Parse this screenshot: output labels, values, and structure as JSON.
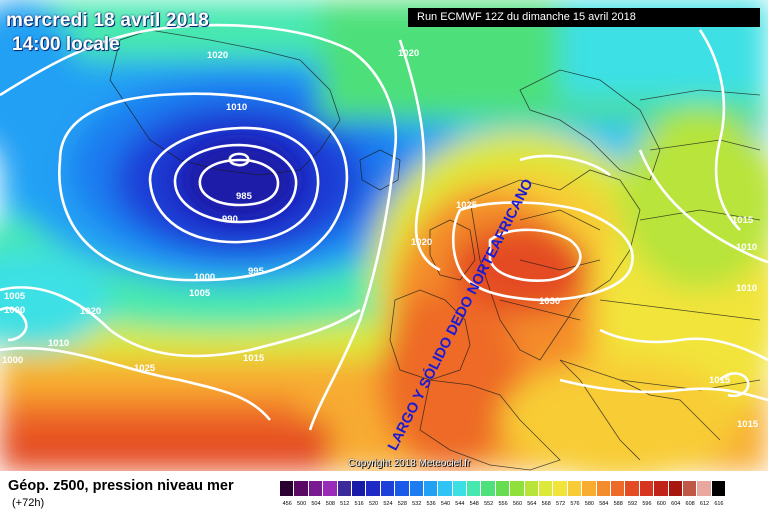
{
  "header": {
    "date": "mercredi 18 avril 2018",
    "time": "14:00 locale",
    "run": "Run ECMWF 12Z du dimanche 15 avril 2018"
  },
  "copyright": "Copyright 2018 Meteociel.fr",
  "annotation": "LARGO Y SÓLIDO DEDO NORTEAFRICANO",
  "footer": {
    "product": "Géop. z500, pression niveau mer",
    "forecast_hour": "(+72h)"
  },
  "legend": {
    "ticks": [
      "456",
      "500",
      "504",
      "508",
      "512",
      "516",
      "520",
      "524",
      "528",
      "532",
      "536",
      "540",
      "544",
      "548",
      "552",
      "556",
      "560",
      "564",
      "568",
      "572",
      "576",
      "580",
      "584",
      "588",
      "592",
      "596",
      "600",
      "604",
      "608",
      "612",
      "616"
    ],
    "colors": [
      "#2a0030",
      "#5a0a64",
      "#7a1a90",
      "#9a2ab8",
      "#3a2a9c",
      "#1a1aa8",
      "#1f2ac4",
      "#1c40d8",
      "#1a5ae8",
      "#1c7cf0",
      "#22a0f4",
      "#30c4f4",
      "#3ce0e4",
      "#46e8b0",
      "#4ee07a",
      "#66dc50",
      "#90e03c",
      "#b8e43a",
      "#dce83a",
      "#f2e43a",
      "#f8cc36",
      "#f8ac30",
      "#f48c2c",
      "#ee6a28",
      "#e44c24",
      "#d63620",
      "#c02418",
      "#a81610",
      "#c05848",
      "#e8a8a0",
      "#000000"
    ]
  },
  "isobars": {
    "values": [
      "1020",
      "1020",
      "1010",
      "985",
      "990",
      "995",
      "1000",
      "1005",
      "1005",
      "1000",
      "1010",
      "1020",
      "1025",
      "1015",
      "1025",
      "1020",
      "1030",
      "1015",
      "1010",
      "1015",
      "1010",
      "1015",
      "1000"
    ]
  }
}
